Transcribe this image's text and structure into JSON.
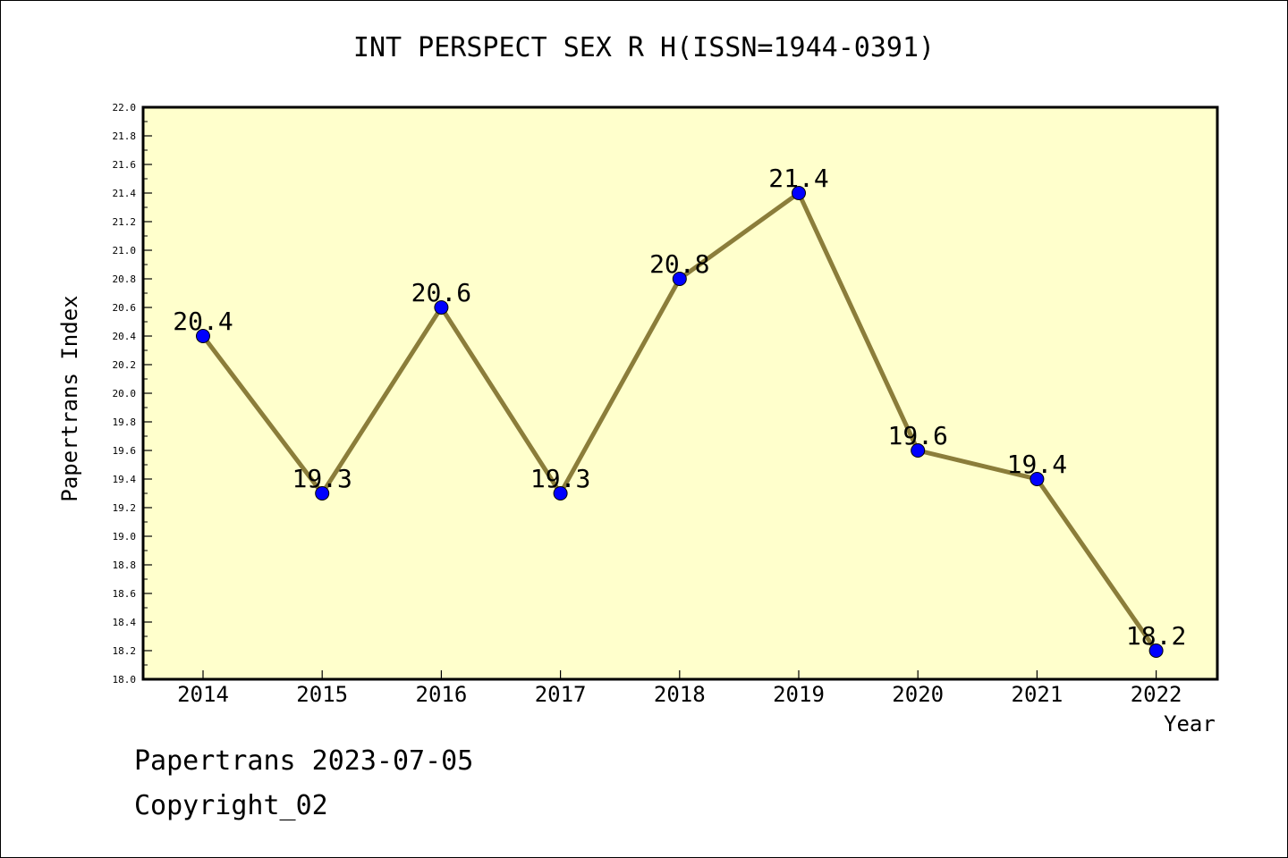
{
  "chart_data": {
    "type": "line",
    "title": "INT PERSPECT SEX R H(ISSN=1944-0391)",
    "xlabel": "Year",
    "ylabel": "Papertrans Index",
    "categories": [
      "2014",
      "2015",
      "2016",
      "2017",
      "2018",
      "2019",
      "2020",
      "2021",
      "2022"
    ],
    "series": [
      {
        "values": [
          20.4,
          19.3,
          20.6,
          19.3,
          20.8,
          21.4,
          19.6,
          19.4,
          18.2
        ],
        "data_labels": [
          "20.4",
          "19.3",
          "20.6",
          "19.3",
          "20.8",
          "21.4",
          "19.6",
          "19.4",
          "18.2"
        ]
      }
    ],
    "ylim": [
      18.0,
      22.0
    ],
    "yticks": [
      "18.0",
      "18.2",
      "18.4",
      "18.6",
      "18.8",
      "19.0",
      "19.2",
      "19.4",
      "19.6",
      "19.8",
      "20.0",
      "20.2",
      "20.4",
      "20.6",
      "20.8",
      "21.0",
      "21.2",
      "21.4",
      "21.6",
      "21.8",
      "22.0"
    ],
    "grid": false,
    "colors": {
      "plot_background": "#ffffcc",
      "line": "#8b7d3a",
      "marker": "#0000ff"
    }
  },
  "footer": {
    "line1": "Papertrans 2023-07-05",
    "line2": "Copyright_02"
  }
}
